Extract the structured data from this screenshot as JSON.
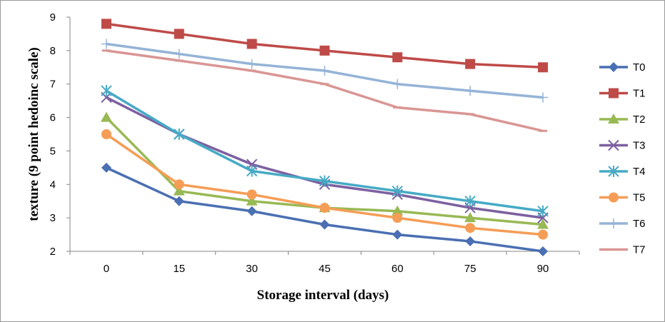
{
  "chart_data": {
    "type": "line",
    "title": "",
    "xlabel": "Storage interval (days)",
    "ylabel": "texture  (9 point hedoinc scale)",
    "categories": [
      "0",
      "15",
      "30",
      "45",
      "60",
      "75",
      "90"
    ],
    "ylim": [
      2,
      9
    ],
    "yticks": [
      "2",
      "3",
      "4",
      "5",
      "6",
      "7",
      "8",
      "9"
    ],
    "grid": false,
    "legend_position": "right",
    "series": [
      {
        "name": "T0",
        "color": "#4a6fb2",
        "marker": "diamond",
        "values": [
          4.5,
          3.5,
          3.2,
          2.8,
          2.5,
          2.3,
          2.0
        ]
      },
      {
        "name": "T1",
        "color": "#be4b48",
        "marker": "square",
        "values": [
          8.8,
          8.5,
          8.2,
          8.0,
          7.8,
          7.6,
          7.5
        ]
      },
      {
        "name": "T2",
        "color": "#98b954",
        "marker": "triangle",
        "values": [
          6.0,
          3.8,
          3.5,
          3.3,
          3.2,
          3.0,
          2.8
        ]
      },
      {
        "name": "T3",
        "color": "#7d60a0",
        "marker": "x",
        "values": [
          6.6,
          5.5,
          4.6,
          4.0,
          3.7,
          3.3,
          3.0
        ]
      },
      {
        "name": "T4",
        "color": "#46aac5",
        "marker": "star",
        "values": [
          6.8,
          5.5,
          4.4,
          4.1,
          3.8,
          3.5,
          3.2
        ]
      },
      {
        "name": "T5",
        "color": "#f59d56",
        "marker": "circle",
        "values": [
          5.5,
          4.0,
          3.7,
          3.3,
          3.0,
          2.7,
          2.5
        ]
      },
      {
        "name": "T6",
        "color": "#95b3d7",
        "marker": "plus",
        "values": [
          8.2,
          7.9,
          7.6,
          7.4,
          7.0,
          6.8,
          6.6
        ]
      },
      {
        "name": "T7",
        "color": "#d99694",
        "marker": "dash",
        "values": [
          8.0,
          7.7,
          7.4,
          7.0,
          6.3,
          6.1,
          5.6
        ]
      }
    ]
  }
}
